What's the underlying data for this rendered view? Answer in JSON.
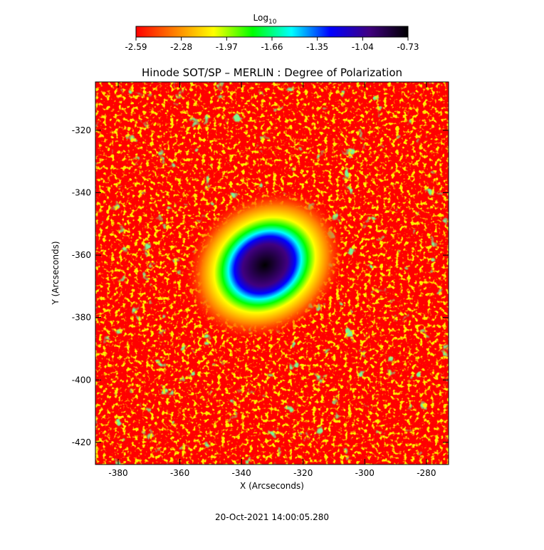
{
  "chart_data": {
    "type": "image",
    "title": "Hinode SOT/SP – MERLIN : Degree of Polarization",
    "xlabel": "X (Arcseconds)",
    "ylabel": "Y (Arcseconds)",
    "xlim": [
      -387.4,
      -272.8
    ],
    "xticks": [
      -380,
      -360,
      -340,
      -320,
      -300,
      -280
    ],
    "ylim": [
      -427.1,
      -304.5
    ],
    "yticks": [
      -420,
      -400,
      -380,
      -360,
      -340,
      -320
    ],
    "colorbar_label": "Log",
    "colorbar_label_sub": "10",
    "clim": [
      -2.59,
      -0.73
    ],
    "cticks": [
      -2.59,
      -2.28,
      -1.97,
      -1.66,
      -1.35,
      -1.04,
      -0.73
    ],
    "colormap": [
      "#ff0000",
      "#ff8000",
      "#ffff00",
      "#00ff00",
      "#00ffff",
      "#0000ff",
      "#400080",
      "#000000"
    ],
    "footer": "20-Oct-2021 14:00:05.280"
  }
}
